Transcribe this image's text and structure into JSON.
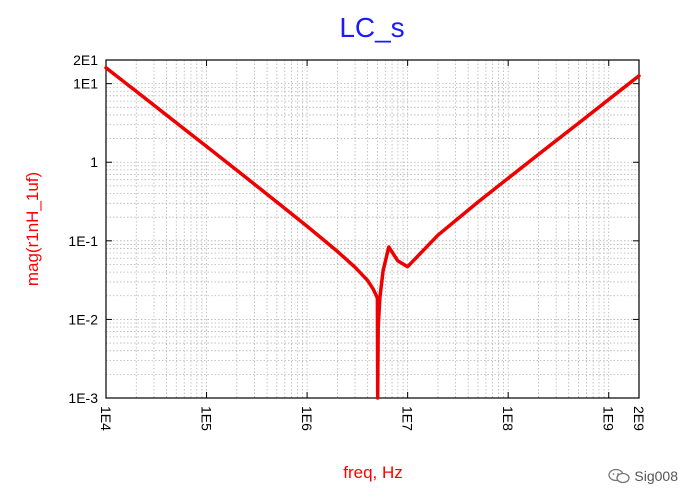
{
  "chart_data": {
    "type": "line",
    "title": "LC_s",
    "xlabel": "freq, Hz",
    "ylabel": "mag(r1nH_1uf)",
    "x_scale": "log",
    "y_scale": "log",
    "xlim": [
      10000,
      2000000000
    ],
    "ylim": [
      0.001,
      20
    ],
    "x_ticks": [
      {
        "value": 10000,
        "label": "1E4"
      },
      {
        "value": 100000,
        "label": "1E5"
      },
      {
        "value": 1000000,
        "label": "1E6"
      },
      {
        "value": 10000000,
        "label": "1E7"
      },
      {
        "value": 100000000,
        "label": "1E8"
      },
      {
        "value": 1000000000,
        "label": "1E9"
      },
      {
        "value": 2000000000,
        "label": "2E9"
      }
    ],
    "y_ticks": [
      {
        "value": 20,
        "label": "2E1"
      },
      {
        "value": 10,
        "label": "1E1"
      },
      {
        "value": 1,
        "label": "1"
      },
      {
        "value": 0.1,
        "label": "1E-1"
      },
      {
        "value": 0.01,
        "label": "1E-2"
      },
      {
        "value": 0.001,
        "label": "1E-3"
      }
    ],
    "grid": true,
    "series": [
      {
        "color": "#ee0000",
        "x": [
          10000,
          20000,
          50000,
          100000,
          200000,
          500000,
          1000000,
          2000000,
          3000000,
          4000000,
          4500000,
          4800000,
          5000000,
          5033000,
          5100000,
          5300000,
          5700000,
          6500000,
          8000000,
          10000000,
          20000000,
          50000000,
          100000000,
          200000000,
          500000000,
          1000000000,
          2000000000
        ],
        "y": [
          15.9,
          7.96,
          3.18,
          1.59,
          0.793,
          0.312,
          0.153,
          0.0733,
          0.0461,
          0.0314,
          0.0248,
          0.021,
          0.0187,
          0.001,
          0.008,
          0.019,
          0.0417,
          0.0834,
          0.0556,
          0.0469,
          0.118,
          0.311,
          0.627,
          1.257,
          3.14,
          6.28,
          12.6
        ]
      }
    ]
  },
  "watermark": {
    "text": "Sig008",
    "icon": "wechat-icon"
  }
}
